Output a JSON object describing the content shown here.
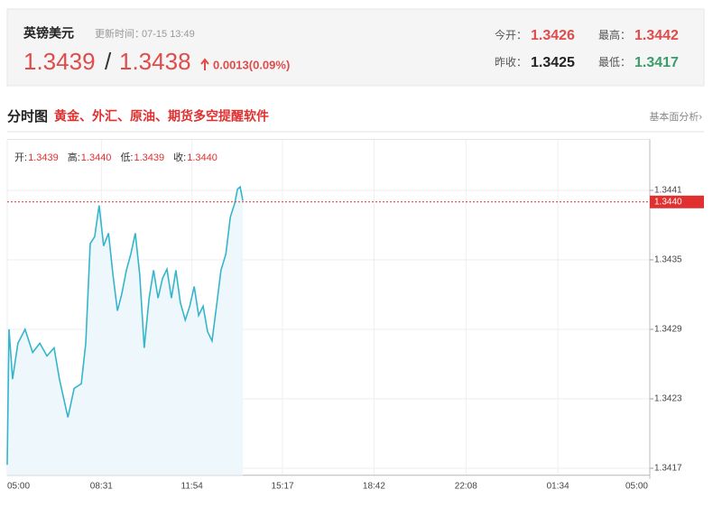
{
  "header": {
    "title": "英镑美元",
    "update_label": "更新时间：",
    "update_time": "07-15 13:49",
    "bid": "1.3439",
    "separator": "/",
    "ask": "1.3438",
    "change": "0.0013(0.09%)",
    "stats": [
      {
        "label": "今开：",
        "value": "1.3426"
      },
      {
        "label": "最高：",
        "value": "1.3442"
      },
      {
        "label": "昨收：",
        "value": "1.3425"
      },
      {
        "label": "最低：",
        "value": "1.3417"
      }
    ]
  },
  "section": {
    "title": "分时图",
    "promo": "黄金、外汇、原油、期货多空提醒软件",
    "link": "基本面分析›"
  },
  "chart_data": {
    "type": "line",
    "ohlc": [
      {
        "label": "开:",
        "value": "1.3439"
      },
      {
        "label": "高:",
        "value": "1.3440"
      },
      {
        "label": "低:",
        "value": "1.3439"
      },
      {
        "label": "收:",
        "value": "1.3440"
      }
    ],
    "x": [
      0,
      4,
      12,
      24,
      40,
      57,
      73,
      89,
      105,
      117,
      136,
      150,
      166,
      176,
      186,
      196,
      206,
      216,
      227,
      237,
      247,
      257,
      267,
      277,
      287,
      297,
      307,
      318,
      328,
      338,
      348,
      358,
      368,
      378,
      388,
      399,
      409,
      419,
      429,
      439,
      449,
      459,
      469,
      479,
      490,
      500,
      510,
      516,
      522,
      528
    ],
    "series": [
      {
        "color": "#35b5cc",
        "values": [
          1.34173,
          1.3429,
          1.34247,
          1.34278,
          1.3429,
          1.3427,
          1.34278,
          1.34267,
          1.34274,
          1.34247,
          1.34214,
          1.34239,
          1.34243,
          1.34278,
          1.34364,
          1.3437,
          1.34397,
          1.34362,
          1.34373,
          1.34337,
          1.34306,
          1.34321,
          1.34341,
          1.34355,
          1.34373,
          1.34337,
          1.34274,
          1.34317,
          1.34341,
          1.34317,
          1.34334,
          1.34342,
          1.34317,
          1.34341,
          1.34313,
          1.34298,
          1.3431,
          1.34327,
          1.34302,
          1.3431,
          1.34288,
          1.3428,
          1.3431,
          1.34341,
          1.34355,
          1.34387,
          1.34399,
          1.34411,
          1.34413,
          1.34401
        ]
      }
    ],
    "last_price": {
      "value": 1.344,
      "label": "1.3440"
    },
    "xlim": [
      0,
      1440
    ],
    "xticks": [
      {
        "value": 0,
        "label": "05:00"
      },
      {
        "value": 211,
        "label": "08:31"
      },
      {
        "value": 414,
        "label": "11:54"
      },
      {
        "value": 617,
        "label": "15:17"
      },
      {
        "value": 822,
        "label": "18:42"
      },
      {
        "value": 1028,
        "label": "22:08"
      },
      {
        "value": 1234,
        "label": "01:34"
      },
      {
        "value": 1440,
        "label": "05:00"
      }
    ],
    "ylim": [
      1.34164,
      1.34454
    ],
    "yticks": [
      1.3417,
      1.3423,
      1.3429,
      1.3435,
      1.3441
    ],
    "grid": true
  }
}
